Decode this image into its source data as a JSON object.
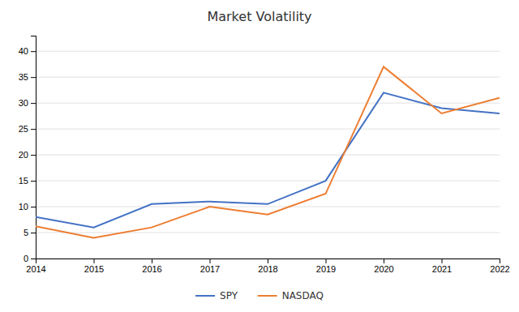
{
  "chart_data": {
    "type": "line",
    "title": "Market Volatility",
    "x": [
      2014,
      2015,
      2016,
      2017,
      2018,
      2019,
      2020,
      2021,
      2022
    ],
    "series": [
      {
        "name": "SPY",
        "color": "#4472c4",
        "values": [
          8,
          6,
          10.5,
          11,
          10.5,
          15,
          32,
          29,
          28
        ]
      },
      {
        "name": "NASDAQ",
        "color": "#ed7d31",
        "values": [
          6.2,
          4,
          6,
          10,
          8.5,
          12.5,
          37,
          28,
          31
        ]
      }
    ],
    "xlim": [
      2014,
      2022
    ],
    "xticks": [
      2014,
      2015,
      2016,
      2017,
      2018,
      2019,
      2020,
      2021,
      2022
    ],
    "ylim": [
      0,
      43
    ],
    "yticks": [
      0,
      5,
      10,
      15,
      20,
      25,
      30,
      35,
      40
    ],
    "grid": true,
    "legend": "bottom"
  }
}
